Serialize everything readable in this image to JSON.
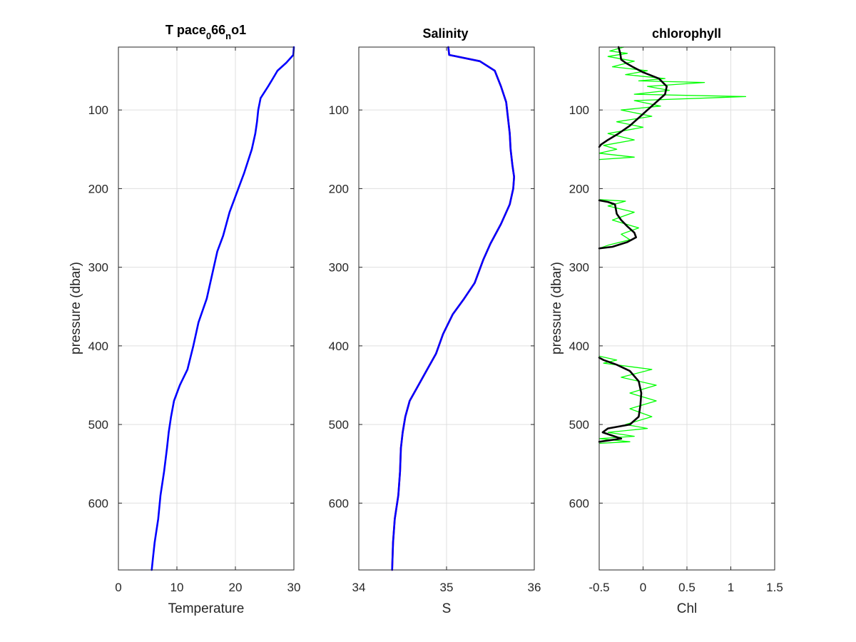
{
  "colors": {
    "primary_line": "#0000ff",
    "raw_line": "#ff0000",
    "chl_raw": "#00ff00",
    "chl_smooth": "#000000"
  },
  "chart_data": [
    {
      "type": "line",
      "title": {
        "base": "T pace",
        "sub1": "0",
        "mid": "66",
        "sub2": "n",
        "end": "o1"
      },
      "xlabel": "Temperature",
      "ylabel": "pressure (dbar)",
      "xlim": [
        0,
        30
      ],
      "ylim": [
        20,
        685
      ],
      "y_reversed": true,
      "xticks": [
        0,
        10,
        20,
        30
      ],
      "yticks": [
        100,
        200,
        300,
        400,
        500,
        600
      ],
      "grid": true,
      "series": [
        {
          "color": "#0000ff",
          "x": [
            30.0,
            29.9,
            28.7,
            27.2,
            26.4,
            25.6,
            24.3,
            23.9,
            23.7,
            23.4,
            22.8,
            21.5,
            20.5,
            19.0,
            17.9,
            16.9,
            16.0,
            15.1,
            13.7,
            12.8,
            11.8,
            10.5,
            9.5,
            9.0,
            8.6,
            8.3,
            7.8,
            7.2,
            6.8,
            6.2,
            5.9,
            5.7
          ],
          "y": [
            20,
            30,
            40,
            50,
            60,
            70,
            85,
            100,
            115,
            130,
            150,
            180,
            200,
            230,
            260,
            280,
            310,
            340,
            370,
            400,
            430,
            450,
            470,
            490,
            510,
            530,
            560,
            590,
            620,
            650,
            670,
            685
          ]
        }
      ]
    },
    {
      "type": "line",
      "title": "Salinity",
      "xlabel": "S",
      "ylabel": "",
      "xlim": [
        34,
        36
      ],
      "ylim": [
        20,
        685
      ],
      "y_reversed": true,
      "xticks": [
        34,
        35,
        36
      ],
      "yticks": [
        100,
        200,
        300,
        400,
        500,
        600
      ],
      "grid": true,
      "series": [
        {
          "color": "#ff0000",
          "x": [
            35.02,
            35.03,
            35.38,
            35.55,
            35.62,
            35.68,
            35.7,
            35.72,
            35.73,
            35.75,
            35.77,
            35.76,
            35.72,
            35.62,
            35.5,
            35.42,
            35.32,
            35.2,
            35.07,
            34.96,
            34.88,
            34.78,
            34.68,
            34.58,
            34.53,
            34.5,
            34.48,
            34.47,
            34.45,
            34.41,
            34.39,
            34.38
          ],
          "y": [
            20,
            30,
            38,
            50,
            70,
            90,
            110,
            130,
            150,
            170,
            185,
            200,
            220,
            245,
            270,
            290,
            320,
            340,
            360,
            385,
            410,
            430,
            450,
            470,
            490,
            510,
            530,
            560,
            590,
            620,
            650,
            685
          ]
        },
        {
          "color": "#0000ff",
          "x": [
            35.02,
            35.03,
            35.38,
            35.55,
            35.62,
            35.68,
            35.7,
            35.72,
            35.73,
            35.75,
            35.77,
            35.76,
            35.72,
            35.62,
            35.5,
            35.42,
            35.32,
            35.2,
            35.07,
            34.96,
            34.88,
            34.78,
            34.68,
            34.58,
            34.53,
            34.5,
            34.48,
            34.47,
            34.45,
            34.41,
            34.39,
            34.38
          ],
          "y": [
            20,
            30,
            38,
            50,
            70,
            90,
            110,
            130,
            150,
            170,
            185,
            200,
            220,
            245,
            270,
            290,
            320,
            340,
            360,
            385,
            410,
            430,
            450,
            470,
            490,
            510,
            530,
            560,
            590,
            620,
            650,
            685
          ]
        }
      ]
    },
    {
      "type": "line",
      "title": "chlorophyll",
      "xlabel": "Chl",
      "ylabel": "pressure (dbar)",
      "xlim": [
        -0.5,
        1.5
      ],
      "ylim": [
        20,
        685
      ],
      "y_reversed": true,
      "xticks": [
        -0.5,
        0,
        0.5,
        1,
        1.5
      ],
      "yticks": [
        100,
        200,
        300,
        400,
        500,
        600
      ],
      "grid": true,
      "series": [
        {
          "color": "#00ff00",
          "segments": [
            {
              "x": [
                -0.22,
                -0.38,
                -0.18,
                -0.4,
                -0.1,
                -0.35,
                0.05,
                -0.2,
                0.25,
                -0.05,
                0.7,
                0.05,
                0.3,
                -0.1,
                1.17,
                -0.1,
                0.2,
                -0.25,
                0.1,
                -0.3,
                0.0,
                -0.4,
                -0.1,
                -0.45,
                -0.3,
                -0.5,
                -0.1,
                -0.5
              ],
              "y": [
                20,
                25,
                28,
                32,
                38,
                45,
                50,
                55,
                60,
                63,
                65,
                70,
                75,
                80,
                83,
                88,
                95,
                100,
                108,
                115,
                122,
                130,
                138,
                145,
                150,
                155,
                160,
                163
              ]
            },
            {
              "x": [
                -0.5,
                -0.2,
                -0.4,
                -0.1,
                -0.35,
                -0.05,
                -0.25,
                -0.15,
                -0.4,
                -0.5
              ],
              "y": [
                214,
                216,
                222,
                230,
                240,
                250,
                258,
                265,
                272,
                276
              ]
            },
            {
              "x": [
                -0.5,
                -0.3,
                -0.45,
                0.1,
                -0.25,
                0.15,
                -0.15,
                0.15,
                -0.15,
                0.1,
                -0.2,
                0.05,
                -0.4,
                -0.1,
                -0.5,
                -0.15,
                -0.5
              ],
              "y": [
                413,
                418,
                422,
                430,
                440,
                450,
                460,
                470,
                480,
                490,
                500,
                505,
                510,
                515,
                518,
                522,
                524
              ]
            }
          ]
        },
        {
          "color": "#000000",
          "segments": [
            {
              "x": [
                -0.28,
                -0.26,
                -0.25,
                -0.2,
                -0.12,
                0.0,
                0.18,
                0.27,
                0.25,
                0.15,
                0.05,
                -0.05,
                -0.15,
                -0.28,
                -0.4,
                -0.48,
                -0.5
              ],
              "y": [
                20,
                28,
                36,
                40,
                45,
                52,
                60,
                70,
                80,
                90,
                100,
                110,
                120,
                130,
                138,
                144,
                147
              ]
            },
            {
              "x": [
                -0.5,
                -0.4,
                -0.32,
                -0.3,
                -0.25,
                -0.18,
                -0.1,
                -0.08,
                -0.18,
                -0.35,
                -0.5
              ],
              "y": [
                215,
                217,
                220,
                232,
                240,
                248,
                256,
                262,
                268,
                274,
                276
              ]
            },
            {
              "x": [
                -0.5,
                -0.45,
                -0.3,
                -0.15,
                -0.05,
                -0.02,
                -0.03,
                -0.05,
                -0.15,
                -0.4,
                -0.46,
                -0.25,
                -0.5
              ],
              "y": [
                415,
                418,
                424,
                432,
                445,
                460,
                475,
                490,
                500,
                505,
                510,
                518,
                522
              ]
            }
          ]
        }
      ]
    }
  ]
}
